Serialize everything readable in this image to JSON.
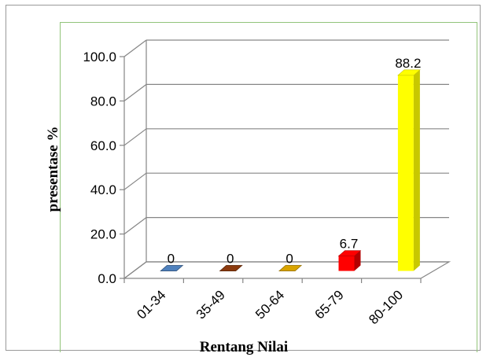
{
  "chart_data": {
    "type": "bar",
    "title": "",
    "xlabel": "Rentang Nilai",
    "ylabel": "presentase %",
    "categories": [
      "01-34",
      "35-49",
      "50-64",
      "65-79",
      "80-100"
    ],
    "values": [
      0,
      0,
      0,
      6.7,
      88.2
    ],
    "data_labels": [
      "0",
      "0",
      "0",
      "6.7",
      "88.2"
    ],
    "y_ticks": [
      "0.0",
      "20.0",
      "40.0",
      "60.0",
      "80.0",
      "100.0"
    ],
    "ylim": [
      0,
      100
    ],
    "grid": true,
    "style": "3d",
    "colors": [
      "#4f81bd",
      "#8b3a0e",
      "#d9a400",
      "#ff0000",
      "#ffff00"
    ],
    "side_colors": [
      "#34567f",
      "#5e2709",
      "#9a7400",
      "#b30000",
      "#c8c800"
    ]
  }
}
